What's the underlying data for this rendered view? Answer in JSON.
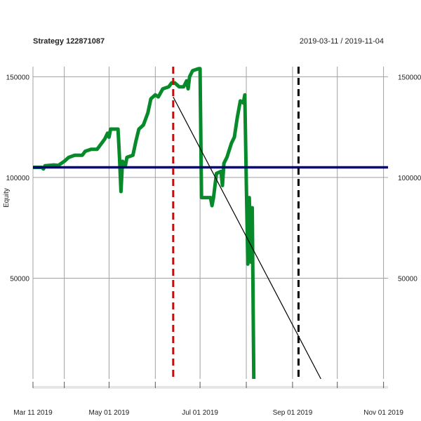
{
  "chart_data": {
    "type": "line",
    "title": "Strategy 122871087",
    "date_range": "2019-03-11 / 2019-11-04",
    "ylabel": "Equity",
    "xlabel": "",
    "x_range": [
      "2019-03-11",
      "2019-11-04"
    ],
    "ylim": [
      0,
      155000
    ],
    "grid": true,
    "legend": "none",
    "x_ticks": [
      {
        "date": "2019-03-11",
        "label": "Mar 11 2019"
      },
      {
        "date": "2019-05-01",
        "label": "May 01 2019"
      },
      {
        "date": "2019-07-01",
        "label": "Jul 01 2019"
      },
      {
        "date": "2019-09-01",
        "label": "Sep 01 2019"
      },
      {
        "date": "2019-11-01",
        "label": "Nov 01 2019"
      }
    ],
    "x_minor_grid_dates": [
      "2019-04-01",
      "2019-06-01",
      "2019-08-01",
      "2019-10-01"
    ],
    "y_ticks_left": [
      {
        "value": 150000,
        "label": "150000"
      },
      {
        "value": 100000,
        "label": "100000"
      },
      {
        "value": 50000,
        "label": "50000"
      }
    ],
    "y_ticks_right": [
      {
        "value": 150000,
        "label": "150000"
      },
      {
        "value": 100000,
        "label": "100000"
      },
      {
        "value": 50000,
        "label": "50000"
      }
    ],
    "series": [
      {
        "color": "#068a2a",
        "points": [
          [
            "2019-03-11",
            105000
          ],
          [
            "2019-03-17",
            105000
          ],
          [
            "2019-03-18",
            104200
          ],
          [
            "2019-03-19",
            105800
          ],
          [
            "2019-03-25",
            106200
          ],
          [
            "2019-03-28",
            106000
          ],
          [
            "2019-04-01",
            108000
          ],
          [
            "2019-04-04",
            110000
          ],
          [
            "2019-04-08",
            111000
          ],
          [
            "2019-04-13",
            111000
          ],
          [
            "2019-04-15",
            113000
          ],
          [
            "2019-04-19",
            114000
          ],
          [
            "2019-04-23",
            114000
          ],
          [
            "2019-04-25",
            116000
          ],
          [
            "2019-04-28",
            119000
          ],
          [
            "2019-04-30",
            122000
          ],
          [
            "2019-05-01",
            120000
          ],
          [
            "2019-05-02",
            124000
          ],
          [
            "2019-05-07",
            124000
          ],
          [
            "2019-05-08",
            110000
          ],
          [
            "2019-05-09",
            93000
          ],
          [
            "2019-05-10",
            108000
          ],
          [
            "2019-05-12",
            106000
          ],
          [
            "2019-05-13",
            110000
          ],
          [
            "2019-05-17",
            111000
          ],
          [
            "2019-05-19",
            118000
          ],
          [
            "2019-05-21",
            124000
          ],
          [
            "2019-05-24",
            126000
          ],
          [
            "2019-05-27",
            132000
          ],
          [
            "2019-05-29",
            139000
          ],
          [
            "2019-06-01",
            141000
          ],
          [
            "2019-06-03",
            140000
          ],
          [
            "2019-06-06",
            144000
          ],
          [
            "2019-06-10",
            145000
          ],
          [
            "2019-06-12",
            147000
          ],
          [
            "2019-06-14",
            147000
          ],
          [
            "2019-06-17",
            145000
          ],
          [
            "2019-06-20",
            145000
          ],
          [
            "2019-06-22",
            148000
          ],
          [
            "2019-06-23",
            144000
          ],
          [
            "2019-06-24",
            150000
          ],
          [
            "2019-06-26",
            153000
          ],
          [
            "2019-06-30",
            154000
          ],
          [
            "2019-07-01",
            154000
          ],
          [
            "2019-07-02",
            90000
          ],
          [
            "2019-07-08",
            90000
          ],
          [
            "2019-07-09",
            86000
          ],
          [
            "2019-07-10",
            90000
          ],
          [
            "2019-07-12",
            102000
          ],
          [
            "2019-07-15",
            103000
          ],
          [
            "2019-07-16",
            96000
          ],
          [
            "2019-07-17",
            107000
          ],
          [
            "2019-07-19",
            110000
          ],
          [
            "2019-07-22",
            117000
          ],
          [
            "2019-07-24",
            120000
          ],
          [
            "2019-07-26",
            130000
          ],
          [
            "2019-07-28",
            138000
          ],
          [
            "2019-07-30",
            137000
          ],
          [
            "2019-07-31",
            141000
          ],
          [
            "2019-08-01",
            98000
          ],
          [
            "2019-08-02",
            57000
          ],
          [
            "2019-08-03",
            90000
          ],
          [
            "2019-08-04",
            58000
          ],
          [
            "2019-08-05",
            85000
          ],
          [
            "2019-08-06",
            0
          ]
        ]
      },
      {
        "color": "#000080",
        "points": [
          [
            "2019-03-11",
            105000
          ],
          [
            "2019-11-04",
            105000
          ]
        ]
      },
      {
        "color": "#000000",
        "points": [
          [
            "2019-06-13",
            140000
          ],
          [
            "2019-09-20",
            0
          ]
        ]
      }
    ],
    "vertical_markers": [
      {
        "date": "2019-06-13",
        "color": "#dd0000",
        "style": "dashed"
      },
      {
        "date": "2019-09-05",
        "color": "#000000",
        "style": "dashed"
      }
    ]
  }
}
